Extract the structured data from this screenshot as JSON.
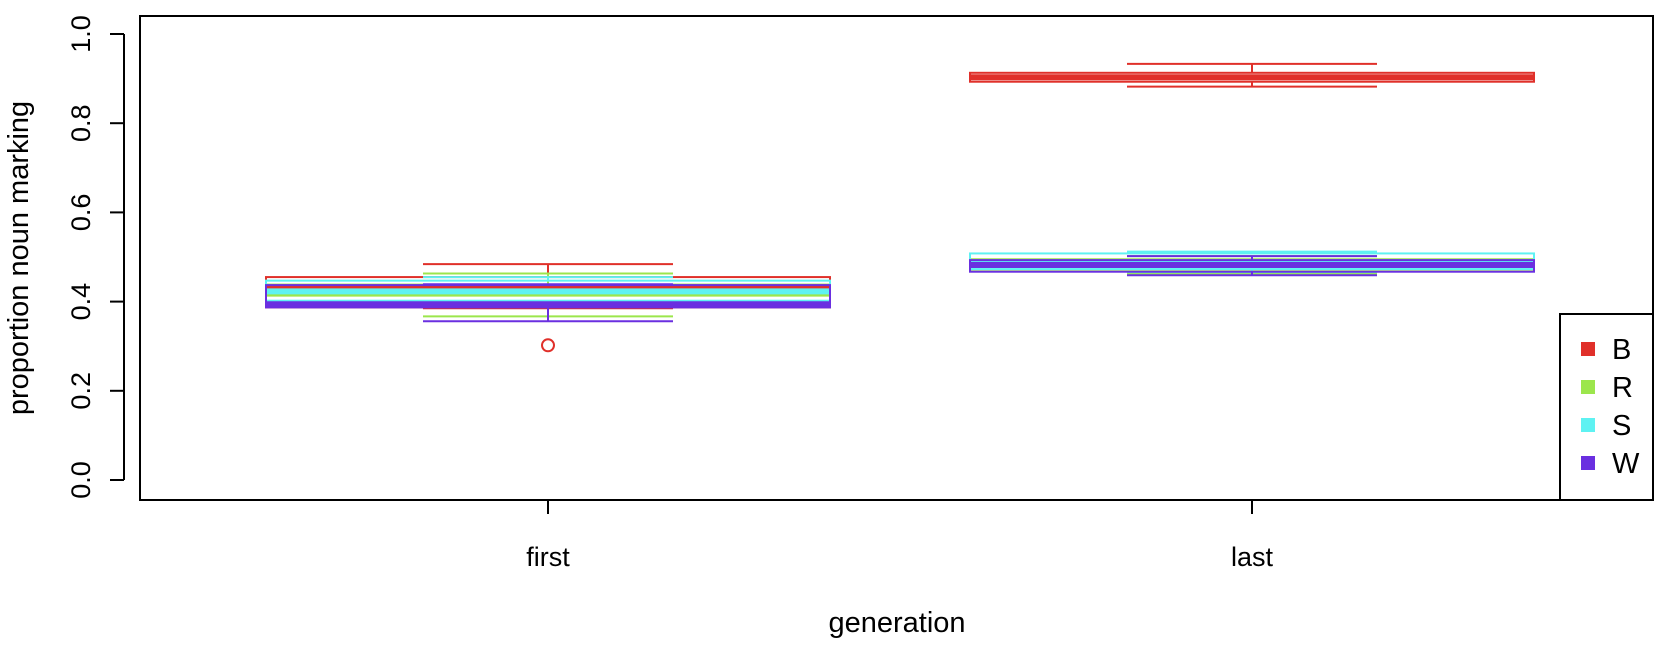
{
  "chart_data": {
    "type": "boxplot",
    "xlabel": "generation",
    "ylabel": "proportion noun marking",
    "categories": [
      "first",
      "last"
    ],
    "ylim": [
      0,
      1
    ],
    "yticks": [
      "0.0",
      "0.2",
      "0.4",
      "0.6",
      "0.8",
      "1.0"
    ],
    "legend_position": "bottom-right",
    "grid": false,
    "series": [
      {
        "name": "B",
        "color": "#e0302a",
        "boxes": [
          {
            "category": "first",
            "whisker_low": 0.385,
            "q1": 0.387,
            "median": 0.433,
            "q3": 0.455,
            "whisker_high": 0.484,
            "outliers": [
              0.302
            ]
          },
          {
            "category": "last",
            "whisker_low": 0.882,
            "q1": 0.893,
            "median": 0.903,
            "q3": 0.913,
            "whisker_high": 0.933,
            "outliers": []
          }
        ]
      },
      {
        "name": "R",
        "color": "#9ce64c",
        "boxes": [
          {
            "category": "first",
            "whisker_low": 0.367,
            "q1": 0.397,
            "median": 0.418,
            "q3": 0.438,
            "whisker_high": 0.463,
            "outliers": []
          },
          {
            "category": "last",
            "whisker_low": 0.463,
            "q1": 0.472,
            "median": 0.484,
            "q3": 0.495,
            "whisker_high": 0.502,
            "outliers": []
          }
        ]
      },
      {
        "name": "S",
        "color": "#5ef2f2",
        "boxes": [
          {
            "category": "first",
            "whisker_low": 0.39,
            "q1": 0.402,
            "median": 0.423,
            "q3": 0.447,
            "whisker_high": 0.455,
            "outliers": []
          },
          {
            "category": "last",
            "whisker_low": 0.466,
            "q1": 0.473,
            "median": 0.488,
            "q3": 0.508,
            "whisker_high": 0.512,
            "outliers": []
          }
        ]
      },
      {
        "name": "W",
        "color": "#6a2fe0",
        "boxes": [
          {
            "category": "first",
            "whisker_low": 0.356,
            "q1": 0.387,
            "median": 0.394,
            "q3": 0.437,
            "whisker_high": 0.439,
            "outliers": []
          },
          {
            "category": "last",
            "whisker_low": 0.459,
            "q1": 0.467,
            "median": 0.482,
            "q3": 0.493,
            "whisker_high": 0.502,
            "outliers": []
          }
        ]
      }
    ]
  }
}
